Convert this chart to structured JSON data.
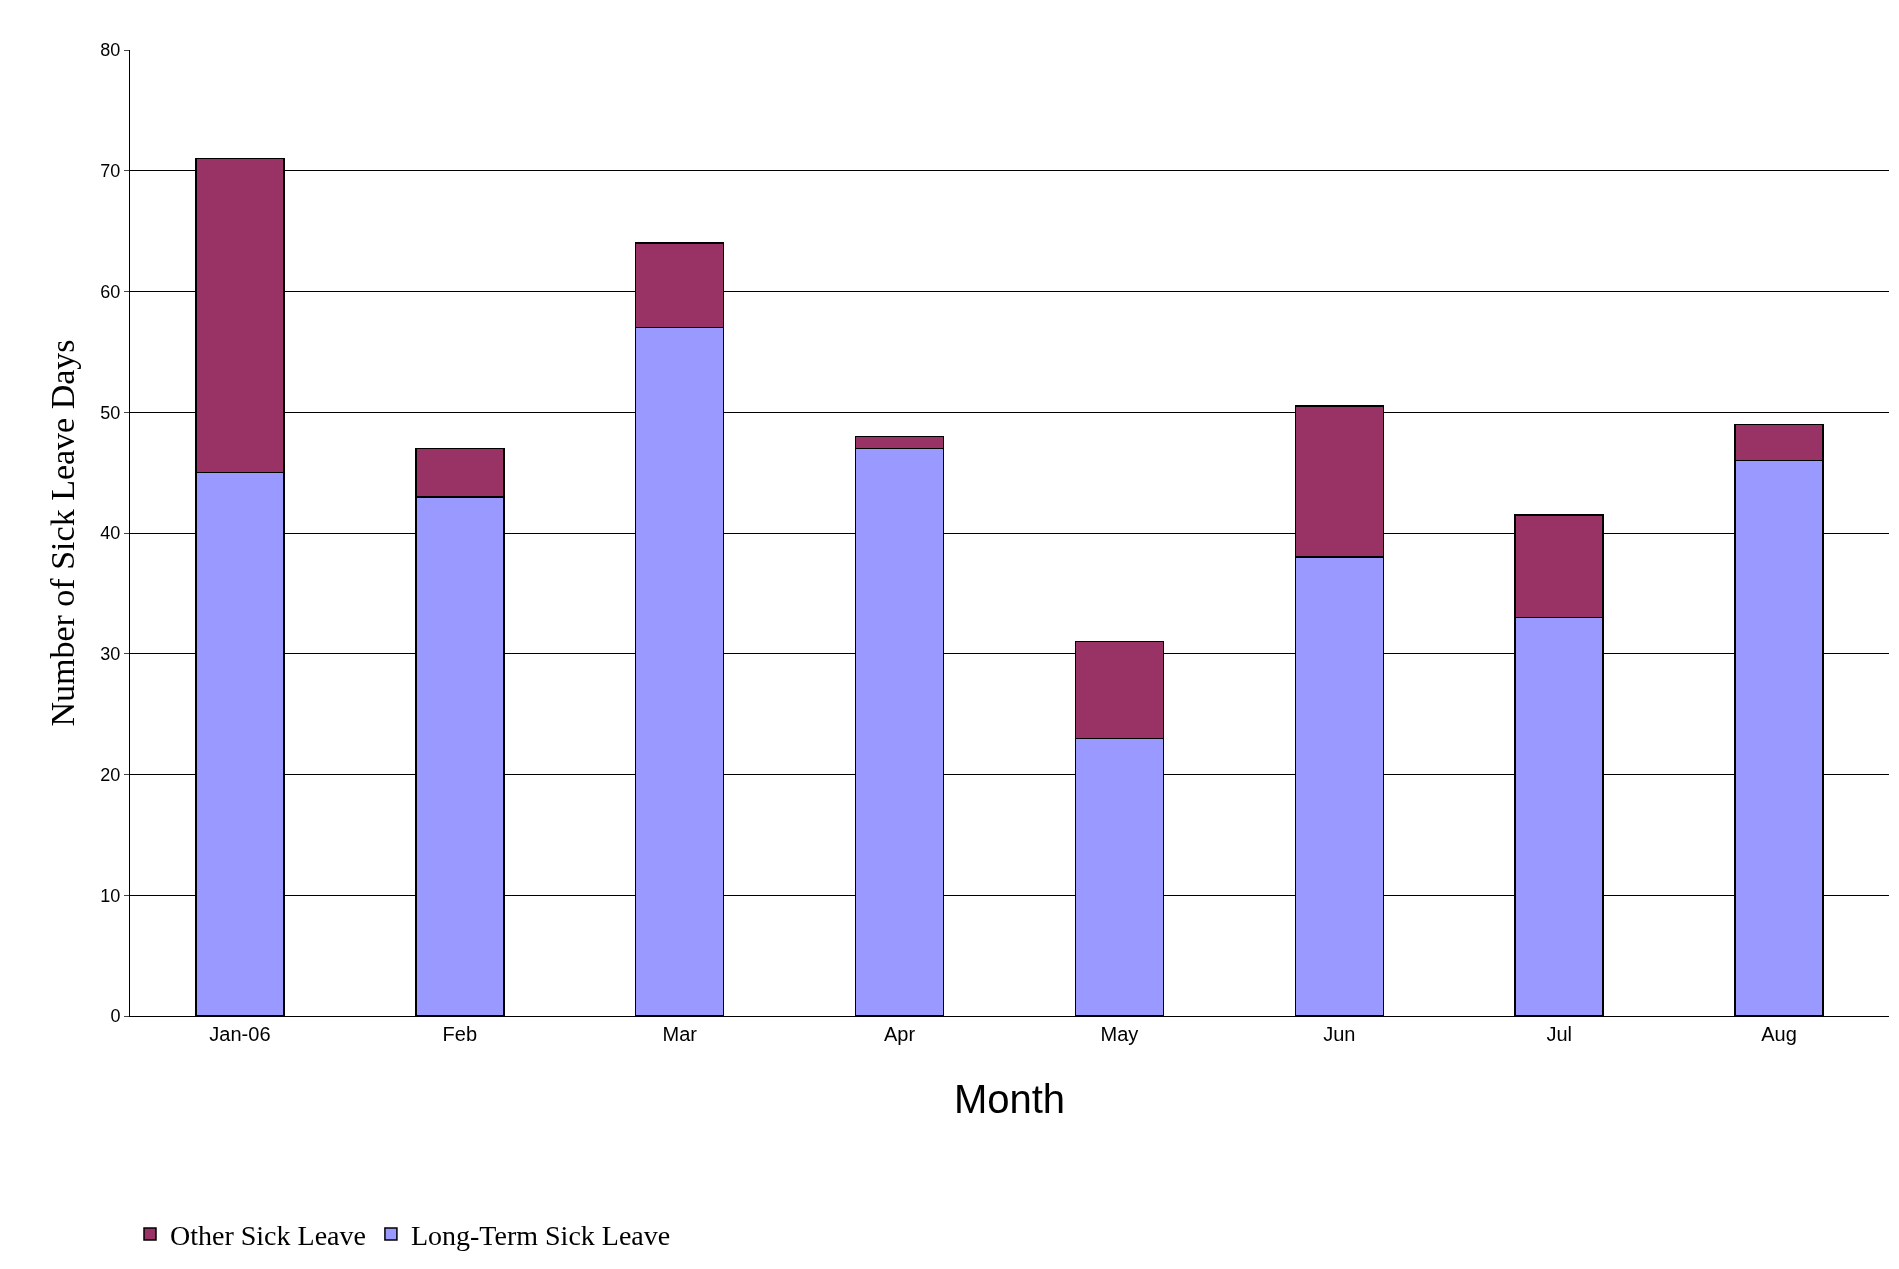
{
  "chart_data": {
    "type": "bar",
    "stacked": true,
    "xlabel": "Month",
    "ylabel": "Number of Sick Leave Days",
    "categories": [
      "Jan-06",
      "Feb",
      "Mar",
      "Apr",
      "May",
      "Jun",
      "Jul",
      "Aug"
    ],
    "series": [
      {
        "name": "Long-Term Sick Leave",
        "color": "#9999ff",
        "values": [
          45,
          43,
          57,
          47,
          23,
          38,
          33,
          46
        ]
      },
      {
        "name": "Other Sick Leave",
        "color": "#993366",
        "values": [
          26,
          4,
          7,
          1,
          8,
          12.5,
          8.5,
          3
        ]
      }
    ],
    "ylim": [
      0,
      80
    ],
    "yticks": [
      0,
      10,
      20,
      30,
      40,
      50,
      60,
      70,
      80
    ],
    "grid": "y",
    "legend": "bottom"
  }
}
